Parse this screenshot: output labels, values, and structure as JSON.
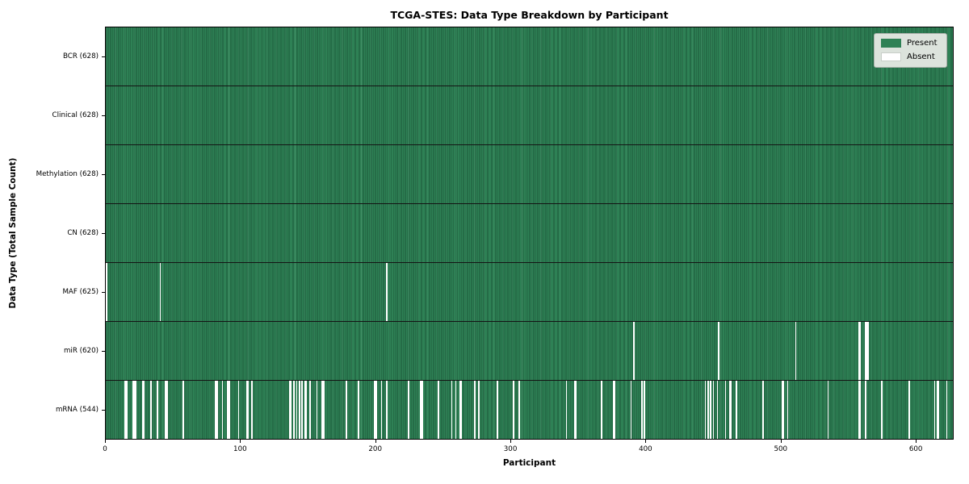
{
  "chart_data": {
    "type": "heatmap",
    "title": "TCGA-STES: Data Type Breakdown by Participant",
    "xlabel": "Participant",
    "ylabel": "Data Type (Total Sample Count)",
    "n_participants": 628,
    "x_ticks": [
      0,
      100,
      200,
      300,
      400,
      500,
      600
    ],
    "grid": false,
    "legend_position": "upper right",
    "legend": [
      {
        "label": "Present",
        "color": "#2e8155"
      },
      {
        "label": "Absent",
        "color": "#ffffff"
      }
    ],
    "colors": {
      "present": "#2e8155",
      "present_edge": "#1d5737",
      "absent": "#ffffff",
      "row_separator": "#141414",
      "legend_bg": "#dce3dc"
    },
    "rows": [
      {
        "label": "BCR (628)",
        "name": "bcr",
        "present_count": 628,
        "absent_count": 0,
        "absent_participants": []
      },
      {
        "label": "Clinical (628)",
        "name": "clinical",
        "present_count": 628,
        "absent_count": 0,
        "absent_participants": []
      },
      {
        "label": "Methylation (628)",
        "name": "methylation",
        "present_count": 628,
        "absent_count": 0,
        "absent_participants": []
      },
      {
        "label": "CN (628)",
        "name": "cn",
        "present_count": 628,
        "absent_count": 0,
        "absent_participants": []
      },
      {
        "label": "MAF (625)",
        "name": "maf",
        "present_count": 625,
        "absent_count": 3,
        "absent_participants": [
          0,
          40,
          208
        ]
      },
      {
        "label": "miR (620)",
        "name": "mir",
        "present_count": 620,
        "absent_count": 8,
        "absent_participants": [
          391,
          454,
          511,
          558,
          559,
          563,
          564,
          565
        ]
      },
      {
        "label": "mRNA (544)",
        "name": "mrna",
        "present_count": 544,
        "absent_count": 84,
        "absent_participants": [
          14,
          15,
          20,
          21,
          22,
          27,
          28,
          33,
          38,
          44,
          45,
          57,
          81,
          82,
          86,
          90,
          91,
          98,
          104,
          105,
          108,
          136,
          137,
          139,
          141,
          143,
          145,
          147,
          148,
          151,
          156,
          160,
          161,
          178,
          187,
          199,
          200,
          204,
          208,
          224,
          233,
          234,
          246,
          256,
          259,
          262,
          263,
          273,
          276,
          290,
          302,
          306,
          341,
          347,
          348,
          367,
          376,
          377,
          389,
          397,
          399,
          444,
          446,
          448,
          450,
          453,
          459,
          462,
          463,
          467,
          487,
          501,
          502,
          505,
          535,
          558,
          559,
          563,
          575,
          595,
          614,
          616,
          617,
          623
        ]
      }
    ]
  }
}
